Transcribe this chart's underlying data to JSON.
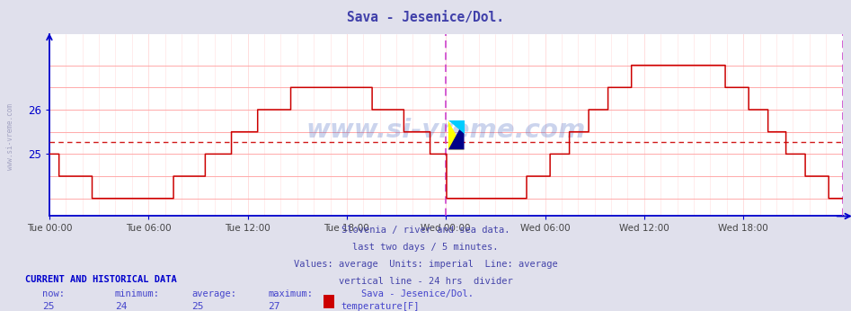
{
  "title": "Sava - Jesenice/Dol.",
  "title_color": "#4040aa",
  "bg_color": "#e0e0ec",
  "plot_bg_color": "#ffffff",
  "grid_color_h": "#ffaaaa",
  "grid_color_v": "#ffdddd",
  "line_color": "#cc0000",
  "avg_line_color": "#cc0000",
  "avg_line_value": 25.28,
  "divider_color": "#cc44cc",
  "axis_color": "#0000cc",
  "ytick_color": "#0000cc",
  "xtick_color": "#444444",
  "ymin": 23.6,
  "ymax": 27.7,
  "yticks": [
    25,
    26
  ],
  "xlabel_times": [
    "Tue 00:00",
    "Tue 06:00",
    "Tue 12:00",
    "Tue 18:00",
    "Wed 00:00",
    "Wed 06:00",
    "Wed 12:00",
    "Wed 18:00"
  ],
  "watermark_text": "www.si-vreme.com",
  "watermark_color": "#3355bb",
  "watermark_alpha": 0.25,
  "info_lines": [
    "Slovenia / river and sea data.",
    "last two days / 5 minutes.",
    "Values: average  Units: imperial  Line: average",
    "vertical line - 24 hrs  divider"
  ],
  "info_color": "#4444aa",
  "bottom_header": "CURRENT AND HISTORICAL DATA",
  "bottom_header_color": "#0000cc",
  "bottom_labels": [
    "now:",
    "minimum:",
    "average:",
    "maximum:",
    "Sava - Jesenice/Dol."
  ],
  "bottom_values": [
    "25",
    "24",
    "25",
    "27"
  ],
  "bottom_color": "#4444cc",
  "legend_label": "temperature[F]",
  "legend_color": "#cc0000",
  "num_points": 576,
  "left_label": "www.si-vreme.com",
  "left_label_color": "#9999bb"
}
